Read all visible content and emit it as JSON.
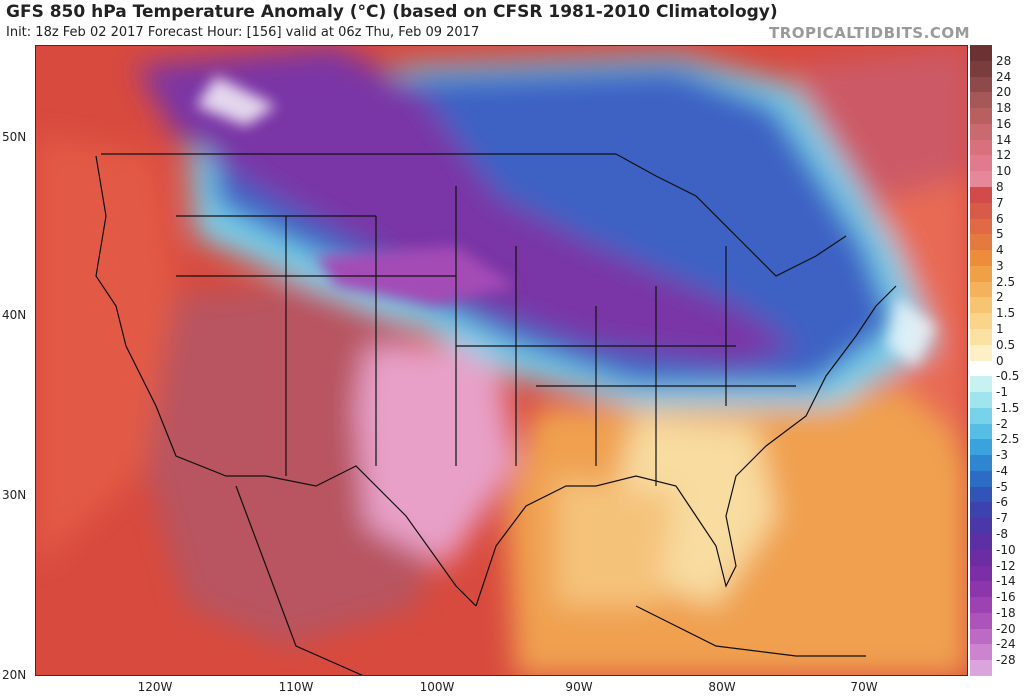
{
  "header": {
    "title": "GFS 850 hPa Temperature Anomaly (°C) (based on CFSR 1981-2010 Climatology)",
    "subtitle": "Init: 18z Feb 02 2017   Forecast Hour: [156]   valid at 06z Thu, Feb 09 2017",
    "credit": "TROPICALTIDBITS.COM"
  },
  "map": {
    "lat_labels": [
      "50N",
      "40N",
      "30N",
      "20N"
    ],
    "lon_labels": [
      "120W",
      "110W",
      "100W",
      "90W",
      "80W",
      "70W"
    ]
  },
  "colorbar": {
    "labels": [
      "28",
      "24",
      "20",
      "18",
      "16",
      "14",
      "12",
      "10",
      "8",
      "7",
      "6",
      "5",
      "4",
      "3",
      "2.5",
      "2",
      "1.5",
      "1",
      "0.5",
      "0",
      "-0.5",
      "-1",
      "-1.5",
      "-2",
      "-2.5",
      "-3",
      "-4",
      "-5",
      "-6",
      "-7",
      "-8",
      "-10",
      "-12",
      "-14",
      "-16",
      "-18",
      "-20",
      "-24",
      "-28"
    ],
    "colors": [
      "#7a3d3d",
      "#8e4a4a",
      "#a65757",
      "#b86060",
      "#c96a70",
      "#d8707e",
      "#e07a8c",
      "#e6879a",
      "#d24a4a",
      "#d85a48",
      "#e06a46",
      "#e57a40",
      "#ec8c3c",
      "#f0a046",
      "#f4b25c",
      "#f7c472",
      "#f9d48a",
      "#fbe2a4",
      "#fdf0c6",
      "#ffffff",
      "#c8f2f2",
      "#a0e4ee",
      "#78d2ea",
      "#56bde4",
      "#3aa2dc",
      "#2f86d0",
      "#2c6cc4",
      "#3254b8",
      "#3e42ae",
      "#4c37a8",
      "#5c30a4",
      "#6c2ca2",
      "#7c2ea6",
      "#8c36ac",
      "#9c42b2",
      "#ac54ba",
      "#bc6ac4",
      "#cc84d0",
      "#dca4dc"
    ]
  }
}
